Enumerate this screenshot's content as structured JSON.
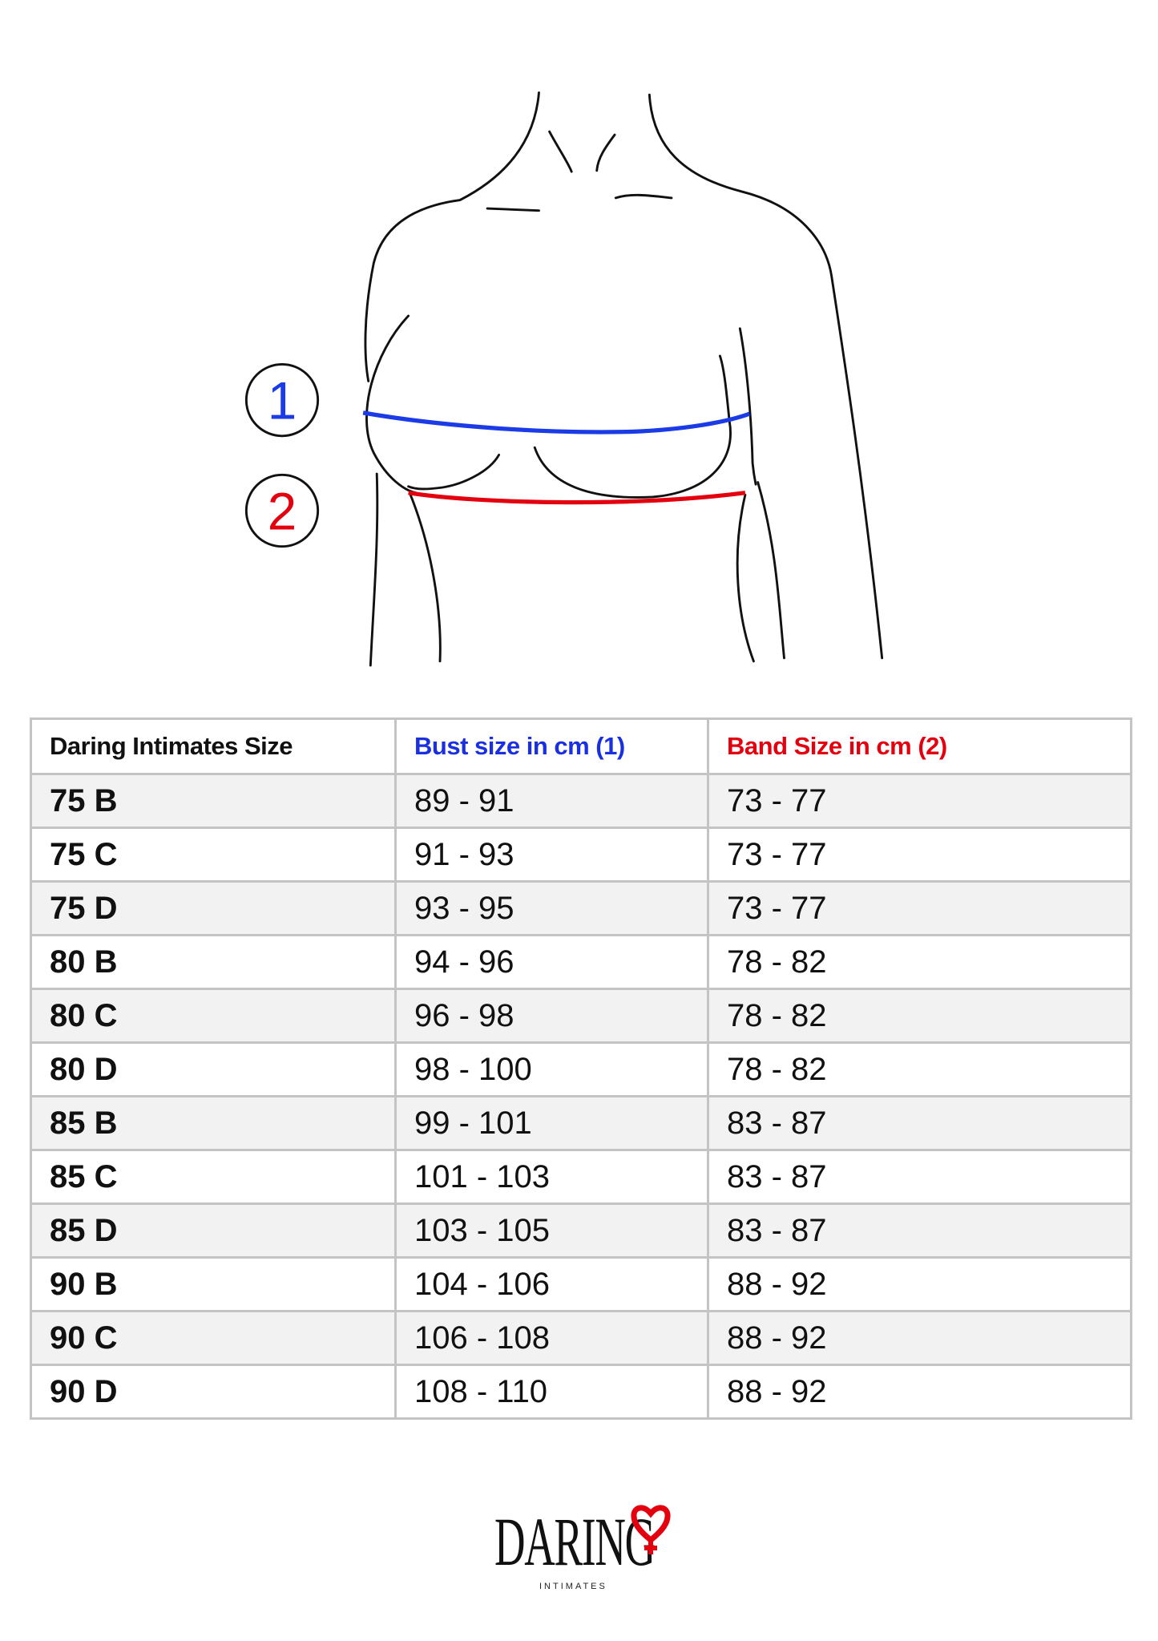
{
  "figure": {
    "markers": [
      {
        "label": "1",
        "color": "#1a3be6"
      },
      {
        "label": "2",
        "color": "#e3000f"
      }
    ]
  },
  "table": {
    "headers": [
      "Daring Intimates Size",
      "Bust size in cm (1)",
      "Band Size in cm (2)"
    ],
    "header_colors": [
      "#111111",
      "#1a2fe0",
      "#e3000f"
    ],
    "rows": [
      [
        "75 B",
        "89 - 91",
        "73 - 77"
      ],
      [
        "75 C",
        "91 - 93",
        "73 - 77"
      ],
      [
        "75 D",
        "93 - 95",
        "73 - 77"
      ],
      [
        "80 B",
        "94 - 96",
        "78 - 82"
      ],
      [
        "80 C",
        "96 - 98",
        "78 - 82"
      ],
      [
        "80 D",
        "98 - 100",
        "78 - 82"
      ],
      [
        "85 B",
        "99 - 101",
        "83 - 87"
      ],
      [
        "85 C",
        "101 - 103",
        "83 - 87"
      ],
      [
        "85 D",
        "103 - 105",
        "83 - 87"
      ],
      [
        "90 B",
        "104 - 106",
        "88 - 92"
      ],
      [
        "90 C",
        "106 - 108",
        "88 - 92"
      ],
      [
        "90 D",
        "108 - 110",
        "88 - 92"
      ]
    ]
  },
  "logo": {
    "name": "DARING",
    "sub": "INTIMATES",
    "accent": "#e3000f"
  }
}
